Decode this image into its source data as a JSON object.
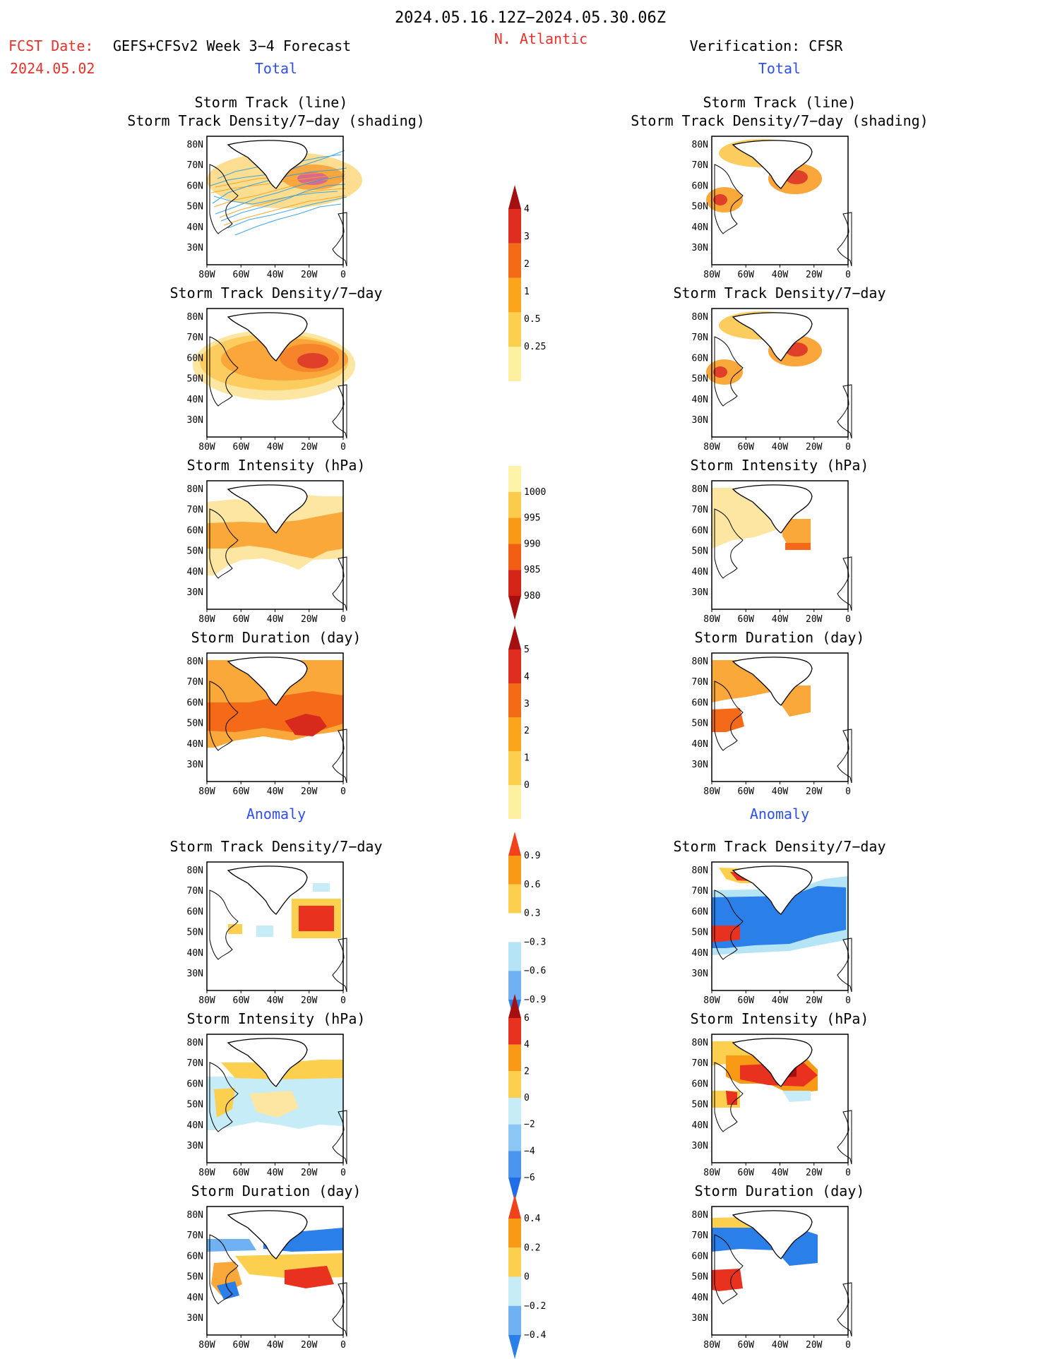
{
  "header": {
    "period": "2024.05.16.12Z−2024.05.30.06Z",
    "fcst_date_label": "FCST Date:",
    "fcst_model": "GEFS+CFSv2 Week 3−4 Forecast",
    "fcst_date": "2024.05.02",
    "region": "N. Atlantic",
    "verification": "Verification: CFSR",
    "total_left": "Total",
    "total_right": "Total",
    "anomaly_left": "Anomaly",
    "anomaly_right": "Anomaly"
  },
  "panel_titles": {
    "track_line": "Storm Track (line)",
    "track_shading": "Storm Track Density/7−day (shading)",
    "density": "Storm Track Density/7−day",
    "intensity": "Storm Intensity (hPa)",
    "duration": "Storm Duration (day)"
  },
  "map_axes": {
    "lon_labels": [
      "80W",
      "60W",
      "40W",
      "20W",
      "0"
    ],
    "lat_labels": [
      "80N",
      "70N",
      "60N",
      "50N",
      "40N",
      "30N"
    ]
  },
  "colorbars": [
    {
      "name": "density-total",
      "labels": [
        "4",
        "3",
        "2",
        "1",
        "0.5",
        "0.25"
      ],
      "colors": [
        "#a50f0f",
        "#de2d1f",
        "#f36b16",
        "#fba51d",
        "#fcd04e",
        "#fdf0a0"
      ],
      "arrow_top": true,
      "arrow_bottom": false
    },
    {
      "name": "intensity-total",
      "labels": [
        "1000",
        "995",
        "990",
        "985",
        "980"
      ],
      "colors": [
        "#fef3a8",
        "#fbcb4c",
        "#f99a16",
        "#f15e14",
        "#d42418",
        "#a50f0f"
      ],
      "arrow_top": false,
      "arrow_bottom": true
    },
    {
      "name": "duration-total",
      "labels": [
        "5",
        "4",
        "3",
        "2",
        "1",
        "0"
      ],
      "colors": [
        "#a50f0f",
        "#de2d1f",
        "#f36b16",
        "#fba51d",
        "#fcd04e",
        "#fdf0a0"
      ],
      "arrow_top": true,
      "arrow_bottom": false
    },
    {
      "name": "density-anomaly",
      "labels": [
        "0.9",
        "0.6",
        "0.3",
        "−0.3",
        "−0.6",
        "−0.9"
      ],
      "colors": [
        "#f0421b",
        "#f99a16",
        "#fcd04e",
        "#ffffff",
        "#b4e4f5",
        "#6fb1f2",
        "#2b7fe8"
      ],
      "arrow_top": true,
      "arrow_bottom": true
    },
    {
      "name": "intensity-anomaly",
      "labels": [
        "6",
        "4",
        "2",
        "0",
        "−2",
        "−4",
        "−6"
      ],
      "colors": [
        "#a50f0f",
        "#e8311f",
        "#f99a16",
        "#fcd04e",
        "#c6ecf8",
        "#8cc6f4",
        "#4b95ee",
        "#1f6ee6"
      ],
      "arrow_top": true,
      "arrow_bottom": true
    },
    {
      "name": "duration-anomaly",
      "labels": [
        "0.4",
        "0.2",
        "0",
        "−0.2",
        "−0.4"
      ],
      "colors": [
        "#f0421b",
        "#f99a16",
        "#fcd04e",
        "#c6ecf8",
        "#6fb1f2",
        "#2b7fe8"
      ],
      "arrow_top": true,
      "arrow_bottom": true
    }
  ]
}
